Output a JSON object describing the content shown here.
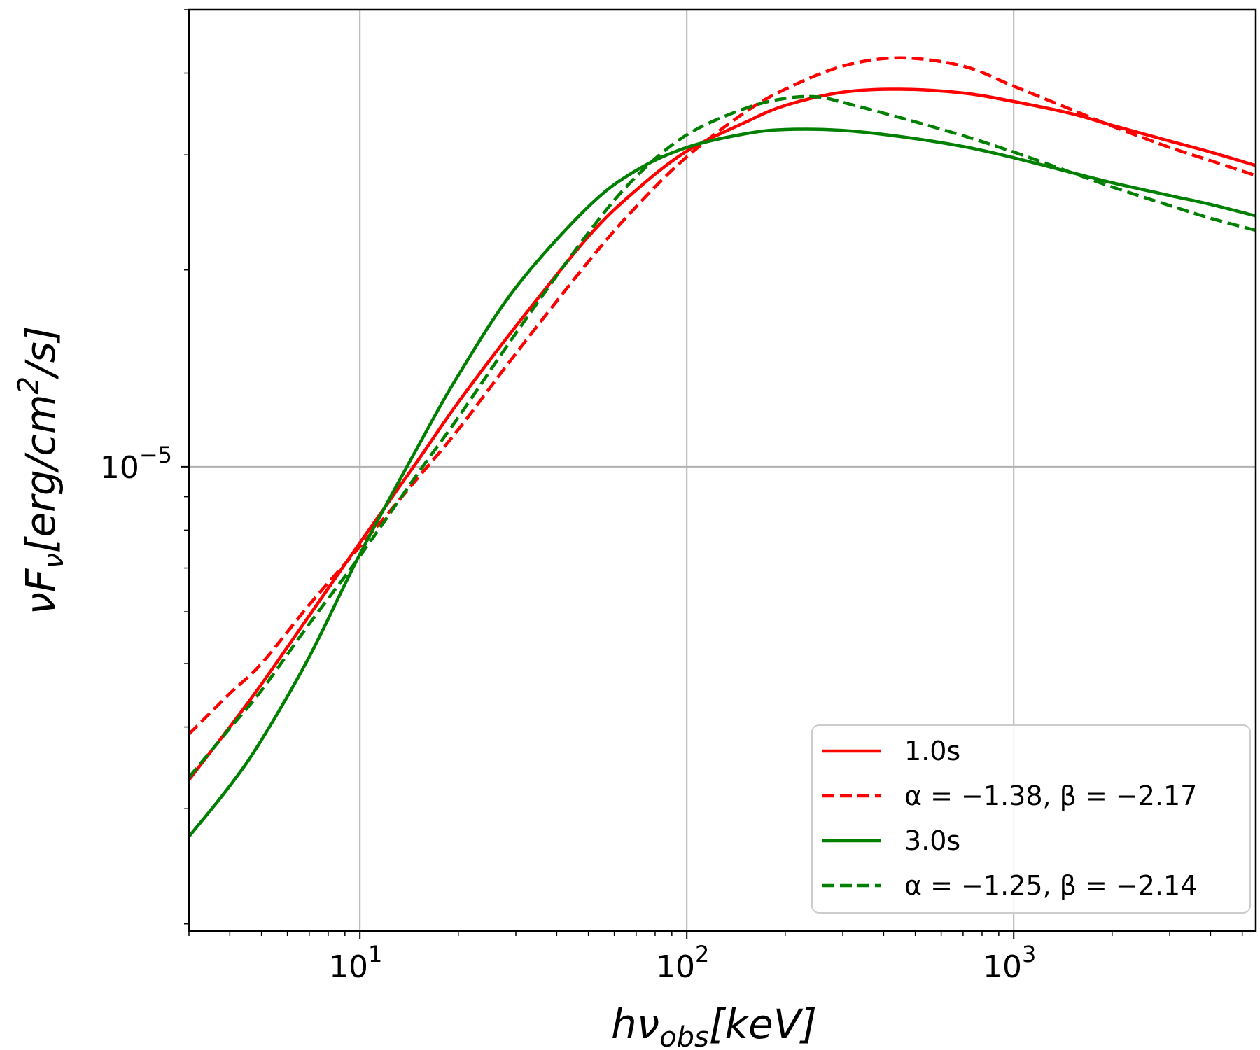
{
  "chart_data": {
    "type": "line",
    "xscale": "log",
    "yscale": "log",
    "xlim": [
      3,
      5500
    ],
    "ylim": [
      1.95e-06,
      5e-05
    ],
    "grid": true,
    "legend_position": "bottom-right",
    "xlabel": "hν_obs[keV]",
    "ylabel": "νF_ν[erg/cm²/s]",
    "x_ticks": [
      {
        "value": 10,
        "base": "10",
        "exp": "1"
      },
      {
        "value": 100,
        "base": "10",
        "exp": "2"
      },
      {
        "value": 1000,
        "base": "10",
        "exp": "3"
      }
    ],
    "y_ticks": [
      {
        "value": 1e-05,
        "base": "10",
        "exp": "−5"
      }
    ],
    "series": [
      {
        "name": "1.0s",
        "color": "#ff0000",
        "dash": "solid",
        "x": [
          3,
          4,
          5,
          7,
          10,
          15,
          20,
          30,
          50,
          70,
          100,
          150,
          200,
          300,
          450,
          700,
          1000,
          1500,
          2000,
          3000,
          4000,
          5500
        ],
        "y": [
          3.32e-06,
          4e-06,
          4.65e-06,
          5.92e-06,
          7.65e-06,
          1.02e-05,
          1.255e-05,
          1.64e-05,
          2.25e-05,
          2.65e-05,
          3.04e-05,
          3.36e-05,
          3.57e-05,
          3.74e-05,
          3.78e-05,
          3.73e-05,
          3.62e-05,
          3.47e-05,
          3.33e-05,
          3.15e-05,
          3.03e-05,
          2.89e-05
        ]
      },
      {
        "name": "α = −1.38, β = −2.17",
        "color": "#ff0000",
        "dash": "dashed",
        "x": [
          3,
          4,
          5,
          7,
          10,
          15,
          20,
          30,
          50,
          70,
          100,
          150,
          200,
          300,
          450,
          700,
          1000,
          1500,
          2000,
          3000,
          4000,
          5500
        ],
        "y": [
          3.9e-06,
          4.5e-06,
          5e-06,
          6.15e-06,
          7.55e-06,
          9.6e-06,
          1.14e-05,
          1.49e-05,
          2.06e-05,
          2.5e-05,
          2.98e-05,
          3.48e-05,
          3.78e-05,
          4.1e-05,
          4.22e-05,
          4.1e-05,
          3.82e-05,
          3.52e-05,
          3.32e-05,
          3.08e-05,
          2.94e-05,
          2.79e-05
        ]
      },
      {
        "name": "3.0s",
        "color": "#008000",
        "dash": "solid",
        "x": [
          3,
          4,
          5,
          7,
          10,
          15,
          20,
          30,
          50,
          70,
          100,
          150,
          200,
          300,
          450,
          700,
          1000,
          1500,
          2000,
          3000,
          4000,
          5500
        ],
        "y": [
          2.72e-06,
          3.25e-06,
          3.82e-06,
          5.12e-06,
          7.35e-06,
          1.07e-05,
          1.38e-05,
          1.88e-05,
          2.5e-05,
          2.84e-05,
          3.08e-05,
          3.23e-05,
          3.28e-05,
          3.27e-05,
          3.2e-05,
          3.09e-05,
          2.97e-05,
          2.82e-05,
          2.72e-05,
          2.6e-05,
          2.52e-05,
          2.42e-05
        ]
      },
      {
        "name": "α = −1.25, β = −2.14",
        "color": "#008000",
        "dash": "dashed",
        "x": [
          3,
          4,
          5,
          7,
          10,
          15,
          20,
          30,
          50,
          70,
          100,
          150,
          200,
          250,
          300,
          450,
          700,
          1000,
          1500,
          2000,
          3000,
          4000,
          5500
        ],
        "y": [
          3.35e-06,
          3.98e-06,
          4.55e-06,
          5.75e-06,
          7.3e-06,
          9.75e-06,
          1.19e-05,
          1.6e-05,
          2.28e-05,
          2.78e-05,
          3.22e-05,
          3.53e-05,
          3.66e-05,
          3.68e-05,
          3.61e-05,
          3.42e-05,
          3.21e-05,
          3.03e-05,
          2.82e-05,
          2.68e-05,
          2.51e-05,
          2.4e-05,
          2.3e-05
        ]
      }
    ],
    "legend": [
      {
        "label": "1.0s",
        "color": "#ff0000",
        "dash": "solid"
      },
      {
        "label": "α = −1.38, β = −2.17",
        "color": "#ff0000",
        "dash": "dashed"
      },
      {
        "label": "3.0s",
        "color": "#008000",
        "dash": "solid"
      },
      {
        "label": "α = −1.25, β = −2.14",
        "color": "#008000",
        "dash": "dashed"
      }
    ]
  }
}
